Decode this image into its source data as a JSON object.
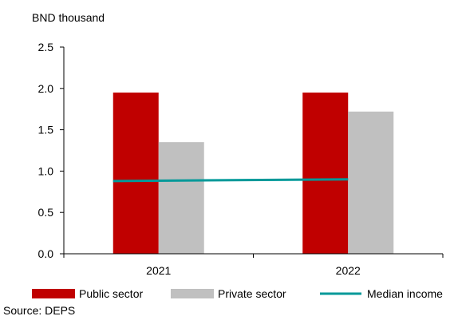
{
  "chart_data": {
    "type": "bar",
    "unit_label": "BND thousand",
    "categories": [
      "2021",
      "2022"
    ],
    "series": [
      {
        "name": "Public sector",
        "kind": "bar",
        "color": "#c00000",
        "values": [
          1.95,
          1.95
        ]
      },
      {
        "name": "Private sector",
        "kind": "bar",
        "color": "#c0c0c0",
        "values": [
          1.35,
          1.72
        ]
      },
      {
        "name": "Median income",
        "kind": "line",
        "color": "#009999",
        "values": [
          0.88,
          0.9
        ]
      }
    ],
    "ylim": [
      0,
      2.5
    ],
    "yticks": [
      "0.0",
      "0.5",
      "1.0",
      "1.5",
      "2.0",
      "2.5"
    ],
    "grid": false,
    "legend_position": "bottom"
  },
  "source": "Source: DEPS"
}
